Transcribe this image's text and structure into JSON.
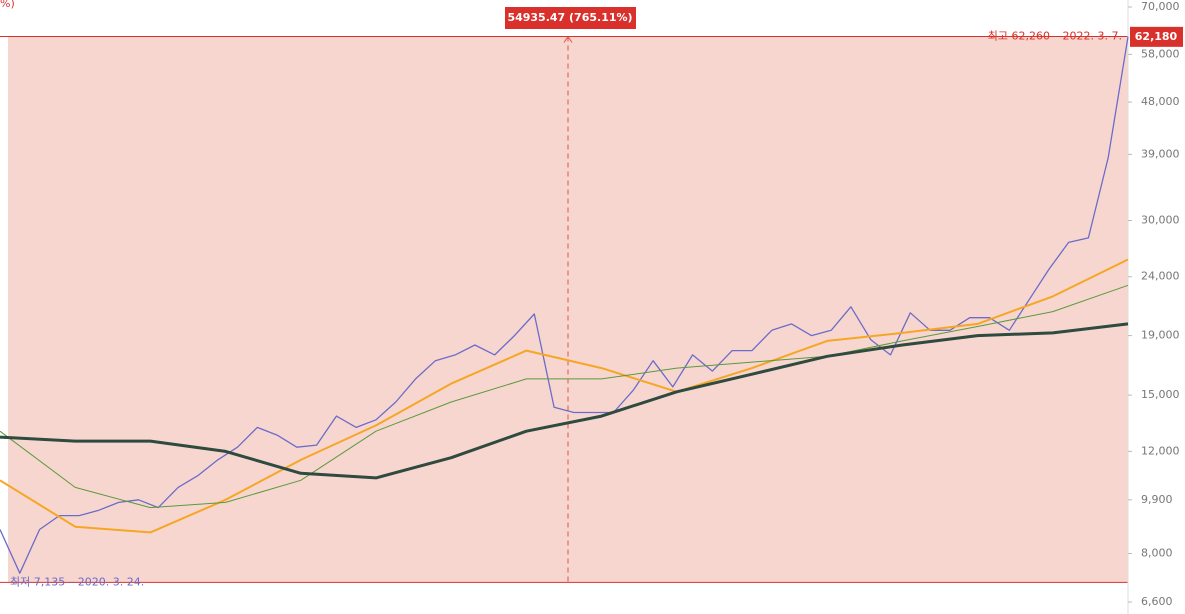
{
  "chart_data": {
    "type": "line",
    "axis_label_fragment": "%)",
    "log_scale": true,
    "ylim": [
      6600,
      70000
    ],
    "yticks": [
      {
        "value": 6600,
        "label": "6,600"
      },
      {
        "value": 8000,
        "label": "8,000"
      },
      {
        "value": 9900,
        "label": "9,900"
      },
      {
        "value": 12000,
        "label": "12,000"
      },
      {
        "value": 15000,
        "label": "15,000"
      },
      {
        "value": 19000,
        "label": "19,000"
      },
      {
        "value": 24000,
        "label": "24,000"
      },
      {
        "value": 30000,
        "label": "30,000"
      },
      {
        "value": 39000,
        "label": "39,000"
      },
      {
        "value": 48000,
        "label": "48,000"
      },
      {
        "value": 58000,
        "label": "58,000"
      },
      {
        "value": 70000,
        "label": "70,000"
      }
    ],
    "band_color": "#f8d6d0",
    "series": [
      {
        "color": "#6a6cc8",
        "width": 1.3,
        "values": [
          8800,
          7400,
          8800,
          9300,
          9300,
          9500,
          9800,
          9900,
          9600,
          10400,
          10900,
          11600,
          12200,
          13200,
          12800,
          12200,
          12300,
          13800,
          13200,
          13600,
          14600,
          16000,
          17200,
          17600,
          18300,
          17600,
          19000,
          20700,
          14300,
          14000,
          14000,
          14000,
          15300,
          17200,
          15500,
          17600,
          16500,
          17900,
          17900,
          19400,
          19900,
          19000,
          19400,
          21300,
          18700,
          17600,
          20800,
          19400,
          19400,
          20400,
          20400,
          19400,
          21900,
          24700,
          27500,
          28000,
          38500,
          62180
        ]
      },
      {
        "color": "#f5a623",
        "width": 2,
        "values": [
          10700,
          8900,
          8700,
          9900,
          11600,
          13300,
          15700,
          17900,
          16700,
          15200,
          16700,
          18600,
          19200,
          19900,
          22200,
          25700
        ]
      },
      {
        "color": "#5a9a3a",
        "width": 1,
        "values": [
          13000,
          10400,
          9600,
          9800,
          10700,
          13000,
          14600,
          16000,
          16000,
          16700,
          17100,
          17500,
          18600,
          19700,
          20900,
          23200
        ]
      },
      {
        "color": "#2f4a3e",
        "width": 3,
        "values": [
          12700,
          12500,
          12500,
          12000,
          11000,
          10800,
          11700,
          13000,
          13800,
          15200,
          16300,
          17500,
          18300,
          19000,
          19200,
          19900
        ]
      }
    ],
    "high": {
      "value": 62260,
      "label": "최고 62,260 – 2022. 3. 7."
    },
    "low": {
      "value": 7135,
      "label": "최저 7,135 – 2020. 3. 24."
    },
    "last": {
      "value": 62180,
      "label": "62,180"
    },
    "measure": {
      "label": "54935.47 (765.11%)"
    }
  }
}
